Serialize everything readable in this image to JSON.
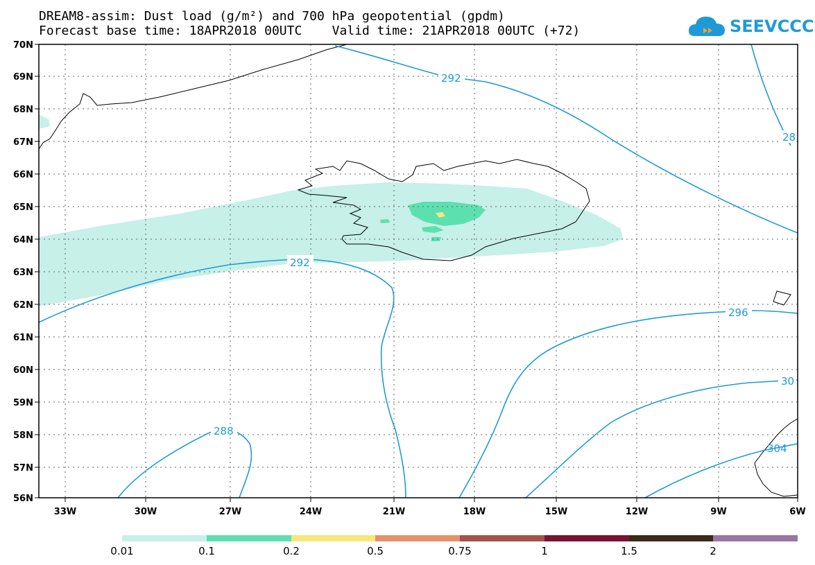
{
  "title_line1": "DREAM8-assim: Dust load (g/m²) and 700 hPa geopotential (gpdm)",
  "title_line2": "Forecast base time: 18APR2018 00UTC    Valid time: 21APR2018 00UTC (+72)",
  "logo": {
    "text": "SEEVCCC",
    "icon": "cloud-logo-icon",
    "color": "#1e9bd7"
  },
  "lat_labels": [
    "70N",
    "69N",
    "68N",
    "67N",
    "66N",
    "65N",
    "64N",
    "63N",
    "62N",
    "61N",
    "60N",
    "59N",
    "58N",
    "57N",
    "56N"
  ],
  "lon_labels": [
    "33W",
    "30W",
    "27W",
    "24W",
    "21W",
    "18W",
    "15W",
    "12W",
    "9W",
    "6W"
  ],
  "contour_labels": [
    "292",
    "292",
    "288",
    "296",
    "30",
    "304",
    "28"
  ],
  "colorbar": {
    "labels": [
      "0.01",
      "0.1",
      "0.2",
      "0.5",
      "0.75",
      "1",
      "1.5",
      "2"
    ],
    "colors": [
      "#c6f0e8",
      "#5de0b0",
      "#f5e87a",
      "#e8906a",
      "#a65248",
      "#7a1230",
      "#3a2a18",
      "#9a74a6"
    ]
  },
  "colors": {
    "contour": "#1e9bd7",
    "dust_light": "#c6f0e8",
    "dust_mid": "#5de0b0",
    "dust_high": "#f5e87a"
  }
}
